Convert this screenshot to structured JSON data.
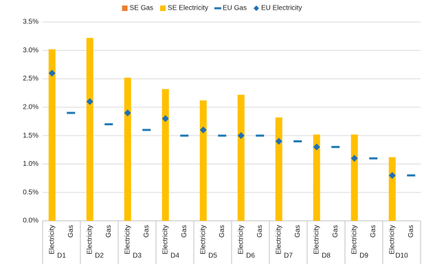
{
  "chart_data": {
    "type": "bar",
    "groups": [
      "D1",
      "D2",
      "D3",
      "D4",
      "D5",
      "D6",
      "D7",
      "D8",
      "D9",
      "D10"
    ],
    "categories": [
      "Electricity",
      "Gas",
      "Electricity",
      "Gas",
      "Electricity",
      "Gas",
      "Electricity",
      "Gas",
      "Electricity",
      "Gas",
      "Electricity",
      "Gas",
      "Electricity",
      "Gas",
      "Electricity",
      "Gas",
      "Electricity",
      "Gas",
      "Electricity",
      "Gas"
    ],
    "series": [
      {
        "name": "SE Gas",
        "color": "#ed7d31",
        "mark": "bar",
        "values": [
          null,
          null,
          null,
          null,
          null,
          null,
          null,
          null,
          null,
          null,
          null,
          null,
          null,
          null,
          null,
          null,
          null,
          null,
          null,
          null
        ]
      },
      {
        "name": "SE Electricity",
        "color": "#ffc000",
        "mark": "bar",
        "values": [
          3.02,
          null,
          3.22,
          null,
          2.52,
          null,
          2.32,
          null,
          2.12,
          null,
          2.22,
          null,
          1.82,
          null,
          1.52,
          null,
          1.52,
          null,
          1.12,
          null
        ]
      },
      {
        "name": "EU Gas",
        "color": "#1f77b4",
        "mark": "dash",
        "values": [
          null,
          1.9,
          null,
          1.7,
          null,
          1.6,
          null,
          1.5,
          null,
          1.5,
          null,
          1.5,
          null,
          1.4,
          null,
          1.3,
          null,
          1.1,
          null,
          0.8
        ]
      },
      {
        "name": "EU Electricity",
        "color": "#1f6fb4",
        "mark": "diamond",
        "values": [
          2.6,
          null,
          2.1,
          null,
          1.9,
          null,
          1.8,
          null,
          1.6,
          null,
          1.5,
          null,
          1.4,
          null,
          1.3,
          null,
          1.1,
          null,
          0.8,
          null
        ]
      }
    ],
    "ylim": [
      0,
      3.5
    ],
    "yticks": [
      {
        "value": 0,
        "label": "0.0%"
      },
      {
        "value": 0.5,
        "label": "0.5%"
      },
      {
        "value": 1,
        "label": "1.0%"
      },
      {
        "value": 1.5,
        "label": "1.5%"
      },
      {
        "value": 2,
        "label": "2.0%"
      },
      {
        "value": 2.5,
        "label": "2.5%"
      },
      {
        "value": 3,
        "label": "3.0%"
      },
      {
        "value": 3.5,
        "label": "3.5%"
      }
    ],
    "grid": true,
    "legend": "top"
  }
}
